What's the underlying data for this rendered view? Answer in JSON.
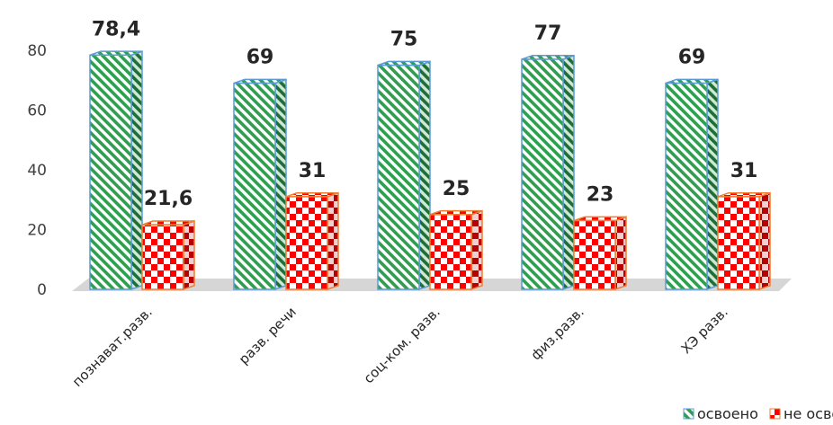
{
  "chart_data": {
    "type": "bar",
    "categories": [
      "познават.разв.",
      "разв. речи",
      "соц-ком. разв.",
      "физ.разв.",
      "ХЭ разв."
    ],
    "series": [
      {
        "name": "освоено",
        "values": [
          78.4,
          69,
          75,
          77,
          69
        ],
        "labels": [
          "78,4",
          "69",
          "75",
          "77",
          "69"
        ],
        "color": "#2e9e4f",
        "pattern": "diagonal-stripes"
      },
      {
        "name": "не освоено",
        "values": [
          21.6,
          31,
          25,
          23,
          31
        ],
        "labels": [
          "21,6",
          "31",
          "25",
          "23",
          "31"
        ],
        "color": "#ff0000",
        "pattern": "checkerboard"
      }
    ],
    "ylim": [
      0,
      80
    ],
    "yticks": [
      "0",
      "20",
      "40",
      "60",
      "80"
    ],
    "grid": false,
    "legend": "bottom-right",
    "style": "3d-columns"
  }
}
